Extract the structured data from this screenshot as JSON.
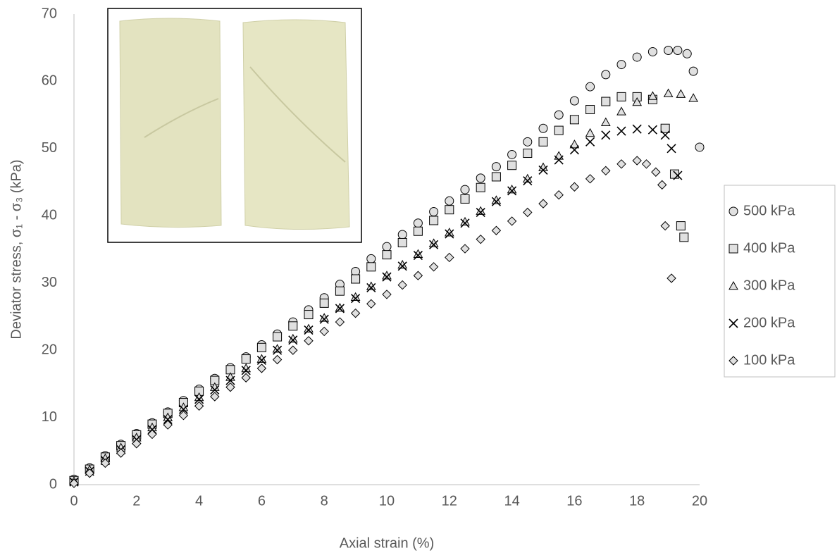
{
  "chart_data": {
    "type": "scatter",
    "x_label": "Axial strain (%)",
    "y_label": "Deviator stress, σ₁ - σ₃ (kPa)",
    "xlim": [
      0,
      20
    ],
    "xticks": [
      0,
      2,
      4,
      6,
      8,
      10,
      12,
      14,
      16,
      18,
      20
    ],
    "ylim": [
      0,
      70
    ],
    "yticks": [
      0,
      10,
      20,
      30,
      40,
      50,
      60,
      70
    ],
    "grid": false,
    "legend": "right",
    "series": [
      {
        "name": "500 kPa",
        "marker": "circle",
        "color": "#e0e0e0",
        "x": [
          0,
          0.5,
          1,
          1.5,
          2,
          2.5,
          3,
          3.5,
          4,
          4.5,
          5,
          5.5,
          6,
          6.5,
          7,
          7.5,
          8,
          8.5,
          9,
          9.5,
          10,
          10.5,
          11,
          11.5,
          12,
          12.5,
          13,
          13.5,
          14,
          14.5,
          15,
          15.5,
          16,
          16.5,
          17,
          17.5,
          18,
          18.5,
          19,
          19.3,
          19.6,
          19.8,
          20
        ],
        "values": [
          0.8,
          2.5,
          4.3,
          6,
          7.6,
          9.2,
          10.8,
          12.5,
          14.2,
          15.8,
          17.4,
          19,
          20.8,
          22.4,
          24.2,
          26,
          27.8,
          29.8,
          31.7,
          33.6,
          35.4,
          37.2,
          38.9,
          40.6,
          42.2,
          43.9,
          45.6,
          47.3,
          49.1,
          51,
          53,
          55,
          57.1,
          59.2,
          61,
          62.5,
          63.6,
          64.4,
          64.6,
          64.6,
          64.1,
          61.5,
          50.2
        ]
      },
      {
        "name": "400 kPa",
        "marker": "square",
        "color": "#e0e0e0",
        "x": [
          0,
          0.5,
          1,
          1.5,
          2,
          2.5,
          3,
          3.5,
          4,
          4.5,
          5,
          5.5,
          6,
          6.5,
          7,
          7.5,
          8,
          8.5,
          9,
          9.5,
          10,
          10.5,
          11,
          11.5,
          12,
          12.5,
          13,
          13.5,
          14,
          14.5,
          15,
          15.5,
          16,
          16.5,
          17,
          17.5,
          18,
          18.5,
          18.9,
          19.2,
          19.4,
          19.5
        ],
        "values": [
          0.6,
          2.3,
          4.1,
          5.8,
          7.4,
          9,
          10.6,
          12.2,
          13.9,
          15.5,
          17.1,
          18.7,
          20.4,
          22,
          23.6,
          25.3,
          27,
          28.8,
          30.6,
          32.4,
          34.2,
          36,
          37.7,
          39.3,
          40.9,
          42.5,
          44.2,
          45.8,
          47.5,
          49.3,
          51,
          52.7,
          54.3,
          55.8,
          57,
          57.7,
          57.7,
          57.3,
          53,
          46.2,
          38.5,
          36.8
        ]
      },
      {
        "name": "300 kPa",
        "marker": "triangle",
        "color": "#e0e0e0",
        "x": [
          0,
          0.5,
          1,
          1.5,
          2,
          2.5,
          3,
          3.5,
          4,
          4.5,
          5,
          5.5,
          6,
          6.5,
          7,
          7.5,
          8,
          8.5,
          9,
          9.5,
          10,
          10.5,
          11,
          11.5,
          12,
          12.5,
          13,
          13.5,
          14,
          14.5,
          15,
          15.5,
          16,
          16.5,
          17,
          17.5,
          18,
          18.5,
          19,
          19.4,
          19.8
        ],
        "values": [
          0.5,
          2.2,
          3.9,
          5.5,
          7,
          8.5,
          10,
          11.5,
          13,
          14.5,
          16,
          17.3,
          18.7,
          20.2,
          21.7,
          23.2,
          24.8,
          26.3,
          27.9,
          29.5,
          31.1,
          32.7,
          34.3,
          35.9,
          37.5,
          39.1,
          40.7,
          42.3,
          43.9,
          45.5,
          47.2,
          48.9,
          50.6,
          52.3,
          53.9,
          55.5,
          56.9,
          57.8,
          58.2,
          58.1,
          57.5
        ]
      },
      {
        "name": "200 kPa",
        "marker": "cross",
        "color": "#000000",
        "x": [
          0,
          0.5,
          1,
          1.5,
          2,
          2.5,
          3,
          3.5,
          4,
          4.5,
          5,
          5.5,
          6,
          6.5,
          7,
          7.5,
          8,
          8.5,
          9,
          9.5,
          10,
          10.5,
          11,
          11.5,
          12,
          12.5,
          13,
          13.5,
          14,
          14.5,
          15,
          15.5,
          16,
          16.5,
          17,
          17.5,
          18,
          18.5,
          18.9,
          19.1,
          19.3
        ],
        "values": [
          0.4,
          2,
          3.6,
          5.2,
          6.7,
          8.2,
          9.7,
          11.2,
          12.7,
          14.1,
          15.5,
          17,
          18.5,
          20,
          21.5,
          23,
          24.6,
          26.2,
          27.7,
          29.3,
          30.9,
          32.5,
          34.1,
          35.7,
          37.3,
          38.9,
          40.5,
          42.1,
          43.7,
          45.2,
          46.8,
          48.3,
          49.8,
          51,
          52,
          52.6,
          52.9,
          52.8,
          52,
          50,
          46
        ]
      },
      {
        "name": "100 kPa",
        "marker": "diamond",
        "color": "#e0e0e0",
        "x": [
          0,
          0.5,
          1,
          1.5,
          2,
          2.5,
          3,
          3.5,
          4,
          4.5,
          5,
          5.5,
          6,
          6.5,
          7,
          7.5,
          8,
          8.5,
          9,
          9.5,
          10,
          10.5,
          11,
          11.5,
          12,
          12.5,
          13,
          13.5,
          14,
          14.5,
          15,
          15.5,
          16,
          16.5,
          17,
          17.5,
          18,
          18.3,
          18.6,
          18.8,
          18.9,
          19.1
        ],
        "values": [
          0.2,
          1.7,
          3.2,
          4.7,
          6.1,
          7.5,
          8.9,
          10.3,
          11.7,
          13.1,
          14.5,
          15.9,
          17.3,
          18.6,
          20,
          21.4,
          22.8,
          24.2,
          25.5,
          26.9,
          28.3,
          29.7,
          31.1,
          32.4,
          33.8,
          35.1,
          36.5,
          37.8,
          39.2,
          40.5,
          41.8,
          43.1,
          44.3,
          45.5,
          46.7,
          47.7,
          48.2,
          47.7,
          46.5,
          44.6,
          38.5,
          30.7
        ]
      }
    ]
  }
}
